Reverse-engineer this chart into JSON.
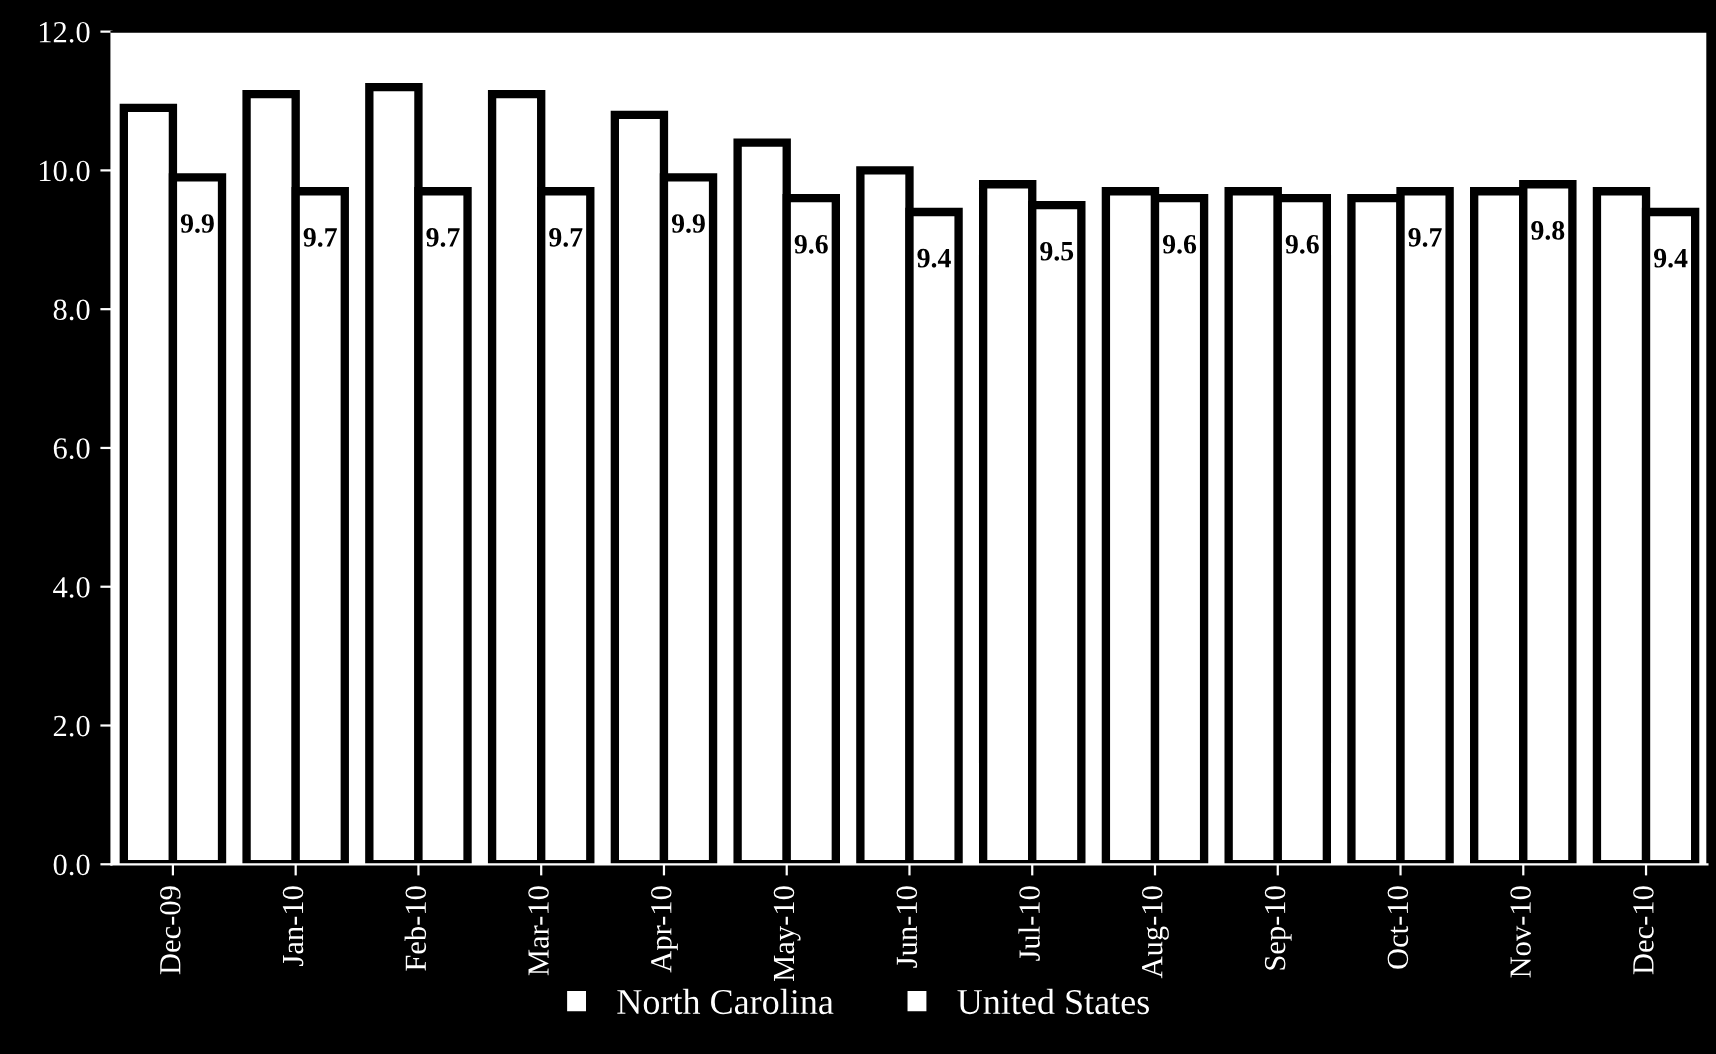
{
  "chart_data": {
    "type": "bar",
    "categories": [
      "Dec-09",
      "Jan-10",
      "Feb-10",
      "Mar-10",
      "Apr-10",
      "May-10",
      "Jun-10",
      "Jul-10",
      "Aug-10",
      "Sep-10",
      "Oct-10",
      "Nov-10",
      "Dec-10"
    ],
    "series": [
      {
        "name": "North Carolina",
        "color": "#ffffff",
        "values": [
          10.9,
          11.1,
          11.2,
          11.1,
          10.8,
          10.4,
          10.0,
          9.8,
          9.7,
          9.7,
          9.6,
          9.7,
          9.7
        ]
      },
      {
        "name": "United States",
        "color": "#ffffff",
        "values": [
          9.9,
          9.7,
          9.7,
          9.7,
          9.9,
          9.6,
          9.4,
          9.5,
          9.6,
          9.6,
          9.7,
          9.8,
          9.4
        ],
        "value_labels": [
          "9.9",
          "9.7",
          "9.7",
          "9.7",
          "9.9",
          "9.6",
          "9.4",
          "9.5",
          "9.6",
          "9.6",
          "9.7",
          "9.8",
          "9.4"
        ]
      }
    ],
    "ylim": [
      0,
      12
    ],
    "yticks": [
      {
        "value": 0,
        "label": "0.0"
      },
      {
        "value": 2,
        "label": "2.0"
      },
      {
        "value": 4,
        "label": "4.0"
      },
      {
        "value": 6,
        "label": "6.0"
      },
      {
        "value": 8,
        "label": "8.0"
      },
      {
        "value": 10,
        "label": "10.0"
      },
      {
        "value": 12,
        "label": "12.0"
      }
    ],
    "legend": "bottom"
  }
}
